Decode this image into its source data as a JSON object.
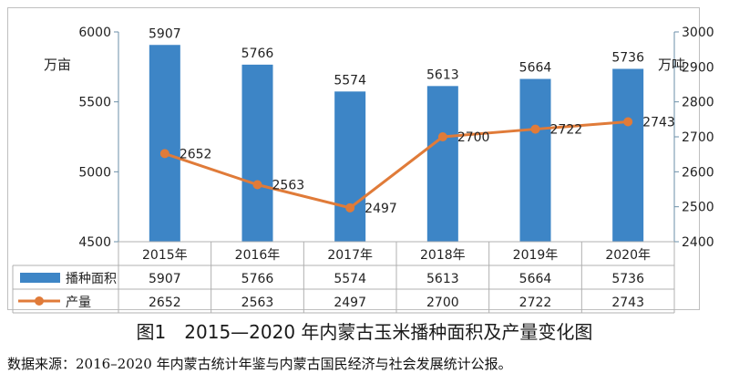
{
  "chart_data": {
    "type": "bar+line",
    "categories": [
      "2015年",
      "2016年",
      "2017年",
      "2018年",
      "2019年",
      "2020年"
    ],
    "series": [
      {
        "name": "播种面积",
        "type": "bar",
        "axis": "left",
        "values": [
          5907,
          5766,
          5574,
          5613,
          5664,
          5736
        ],
        "color": "#3d85c6"
      },
      {
        "name": "产量",
        "type": "line",
        "axis": "right",
        "values": [
          2652,
          2563,
          2497,
          2700,
          2722,
          2743
        ],
        "color": "#e07b39"
      }
    ],
    "y_left": {
      "unit": "万亩",
      "ylim": [
        4500,
        6000
      ],
      "ticks": [
        4500,
        5000,
        5500,
        6000
      ]
    },
    "y_right": {
      "unit": "万吨",
      "ylim": [
        2400,
        3000
      ],
      "ticks": [
        2400,
        2500,
        2600,
        2700,
        2800,
        2900,
        3000
      ]
    },
    "data_table": true,
    "grid": false,
    "title": "图1　2015—2020 年内蒙古玉米播种面积及产量变化图"
  },
  "source_note": "数据来源：2016–2020 年内蒙古统计年鉴与内蒙古国民经济与社会发展统计公报。"
}
